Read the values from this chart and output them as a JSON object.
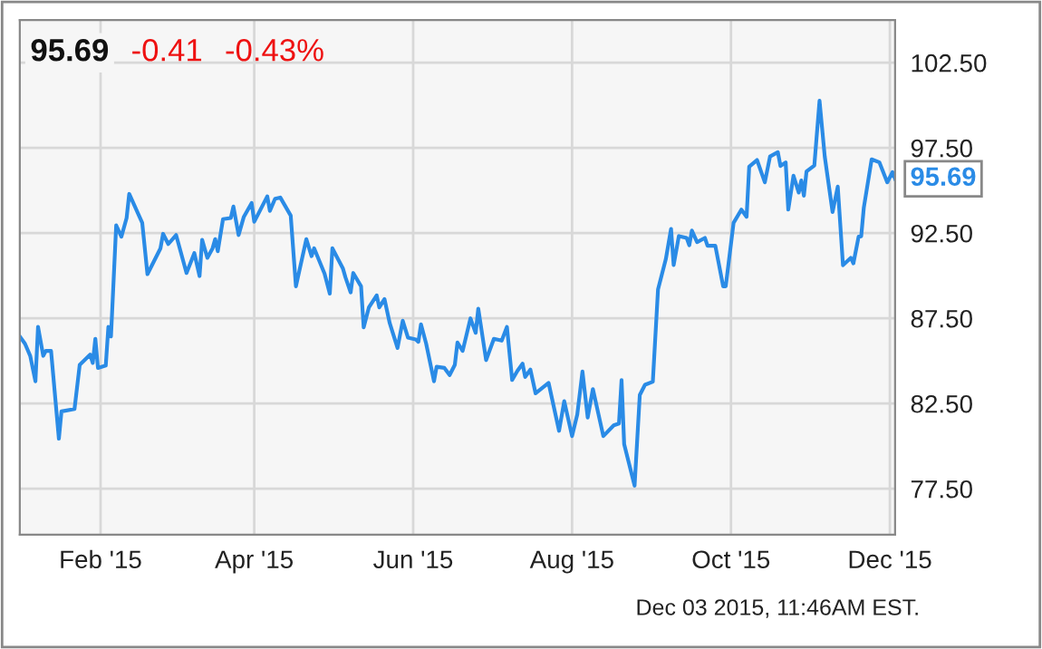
{
  "chart_data": {
    "type": "line",
    "title": "95.69",
    "annotations": [
      "-0.41",
      "-0.43%",
      "Dec 03 2015, 11:46AM EST.",
      {
        "text": "95.69",
        "x": "2015-12-03",
        "y": 95.69
      }
    ],
    "x": [
      "2015-01-01",
      "2015-01-03",
      "2015-01-05",
      "2015-01-07",
      "2015-01-08",
      "2015-01-10",
      "2015-01-11",
      "2015-01-13",
      "2015-01-16",
      "2015-01-17",
      "2015-01-22",
      "2015-01-24",
      "2015-01-28",
      "2015-01-29",
      "2015-01-30",
      "2015-01-31",
      "2015-02-03",
      "2015-02-04",
      "2015-02-05",
      "2015-02-07",
      "2015-02-09",
      "2015-02-11",
      "2015-02-12",
      "2015-02-17",
      "2015-02-19",
      "2015-02-24",
      "2015-02-25",
      "2015-02-27",
      "2015-03-02",
      "2015-03-06",
      "2015-03-09",
      "2015-03-11",
      "2015-03-12",
      "2015-03-14",
      "2015-03-16",
      "2015-03-17",
      "2015-03-18",
      "2015-03-20",
      "2015-03-23",
      "2015-03-24",
      "2015-03-26",
      "2015-03-28",
      "2015-03-31",
      "2015-04-01",
      "2015-04-06",
      "2015-04-07",
      "2015-04-09",
      "2015-04-11",
      "2015-04-15",
      "2015-04-17",
      "2015-04-21",
      "2015-04-23",
      "2015-04-24",
      "2015-04-28",
      "2015-04-30",
      "2015-05-01",
      "2015-05-05",
      "2015-05-06",
      "2015-05-08",
      "2015-05-09",
      "2015-05-12",
      "2015-05-13",
      "2015-05-15",
      "2015-05-18",
      "2015-05-19",
      "2015-05-21",
      "2015-05-23",
      "2015-05-26",
      "2015-05-28",
      "2015-05-30",
      "2015-06-02",
      "2015-06-03",
      "2015-06-04",
      "2015-06-06",
      "2015-06-09",
      "2015-06-10",
      "2015-06-13",
      "2015-06-15",
      "2015-06-17",
      "2015-06-18",
      "2015-06-20",
      "2015-06-23",
      "2015-06-25",
      "2015-06-26",
      "2015-06-29",
      "2015-07-02",
      "2015-07-05",
      "2015-07-07",
      "2015-07-09",
      "2015-07-11",
      "2015-07-13",
      "2015-07-14",
      "2015-07-16",
      "2015-07-18",
      "2015-07-23",
      "2015-07-27",
      "2015-07-29",
      "2015-08-01",
      "2015-08-03",
      "2015-08-05",
      "2015-08-07",
      "2015-08-09",
      "2015-08-13",
      "2015-08-17",
      "2015-08-19",
      "2015-08-20",
      "2015-08-21",
      "2015-08-25",
      "2015-08-27",
      "2015-08-29",
      "2015-09-01",
      "2015-09-03",
      "2015-09-06",
      "2015-09-08",
      "2015-09-09",
      "2015-09-11",
      "2015-09-14",
      "2015-09-15",
      "2015-09-16",
      "2015-09-18",
      "2015-09-21",
      "2015-09-22",
      "2015-09-25",
      "2015-09-28",
      "2015-09-29",
      "2015-10-02",
      "2015-10-05",
      "2015-10-07",
      "2015-10-08",
      "2015-10-11",
      "2015-10-14",
      "2015-10-16",
      "2015-10-19",
      "2015-10-20",
      "2015-10-22",
      "2015-10-23",
      "2015-10-25",
      "2015-10-27",
      "2015-10-28",
      "2015-10-29",
      "2015-10-30",
      "2015-11-02",
      "2015-11-04",
      "2015-11-06",
      "2015-11-09",
      "2015-11-11",
      "2015-11-12",
      "2015-11-13",
      "2015-11-16",
      "2015-11-17",
      "2015-11-19",
      "2015-11-20",
      "2015-11-21",
      "2015-11-24",
      "2015-11-27",
      "2015-11-30",
      "2015-12-02",
      "2015-12-03"
    ],
    "series": [
      {
        "color": "#2a8be6",
        "values": [
          86.44,
          86.01,
          85.3,
          83.81,
          87.0,
          85.3,
          85.59,
          85.59,
          80.44,
          82.04,
          82.18,
          84.77,
          85.37,
          84.88,
          86.3,
          84.59,
          84.73,
          87.0,
          86.44,
          92.96,
          92.29,
          93.39,
          94.8,
          93.1,
          90.09,
          91.61,
          92.46,
          91.86,
          92.39,
          90.16,
          91.33,
          89.98,
          92.11,
          91.05,
          91.61,
          92.15,
          91.44,
          93.32,
          93.39,
          94.06,
          92.39,
          93.46,
          94.27,
          93.17,
          94.66,
          93.81,
          94.52,
          94.59,
          93.53,
          89.38,
          92.15,
          91.15,
          91.61,
          90.12,
          88.95,
          91.61,
          90.44,
          89.91,
          89.02,
          90.16,
          89.38,
          86.97,
          88.14,
          88.85,
          88.14,
          88.63,
          87.22,
          85.76,
          87.36,
          86.37,
          86.26,
          86.12,
          87.15,
          86.01,
          83.81,
          84.66,
          84.59,
          84.17,
          84.77,
          86.08,
          85.59,
          87.5,
          86.65,
          88.07,
          85.05,
          86.3,
          86.19,
          87.0,
          83.88,
          84.41,
          84.84,
          84.06,
          84.49,
          83.1,
          83.71,
          80.9,
          82.64,
          80.59,
          81.86,
          84.38,
          81.68,
          83.35,
          80.59,
          81.22,
          81.33,
          83.88,
          80.12,
          77.68,
          83.0,
          83.6,
          83.78,
          89.2,
          90.98,
          92.75,
          90.63,
          92.33,
          92.22,
          91.79,
          92.65,
          91.97,
          92.22,
          91.76,
          91.76,
          89.38,
          89.38,
          93.1,
          93.88,
          93.46,
          96.4,
          96.79,
          95.48,
          97.0,
          97.25,
          96.44,
          96.65,
          93.88,
          95.87,
          94.88,
          95.59,
          94.7,
          96.12,
          96.47,
          100.27,
          97.0,
          93.74,
          95.23,
          92.93,
          90.62,
          91.05,
          90.73,
          92.29,
          92.32,
          94.0,
          96.83,
          96.65,
          95.48,
          96.08,
          95.69
        ]
      }
    ],
    "xlim": [
      "2015-01-01",
      "2015-12-03"
    ],
    "xticks": [
      {
        "value": "2015-02-01",
        "label": "Feb '15"
      },
      {
        "value": "2015-04-01",
        "label": "Apr '15"
      },
      {
        "value": "2015-06-01",
        "label": "Jun '15"
      },
      {
        "value": "2015-08-01",
        "label": "Aug '15"
      },
      {
        "value": "2015-10-01",
        "label": "Oct '15"
      },
      {
        "value": "2015-12-01",
        "label": "Dec '15"
      }
    ],
    "ylim": [
      74.8,
      105.0
    ],
    "yticks": [
      {
        "value": 77.5,
        "label": "77.50"
      },
      {
        "value": 82.5,
        "label": "82.50"
      },
      {
        "value": 87.5,
        "label": "87.50"
      },
      {
        "value": 92.5,
        "label": "92.50"
      },
      {
        "value": 97.5,
        "label": "97.50"
      },
      {
        "value": 102.5,
        "label": "102.50"
      }
    ],
    "grid": true,
    "legend": false,
    "marker": "none",
    "line_style": "solid"
  }
}
